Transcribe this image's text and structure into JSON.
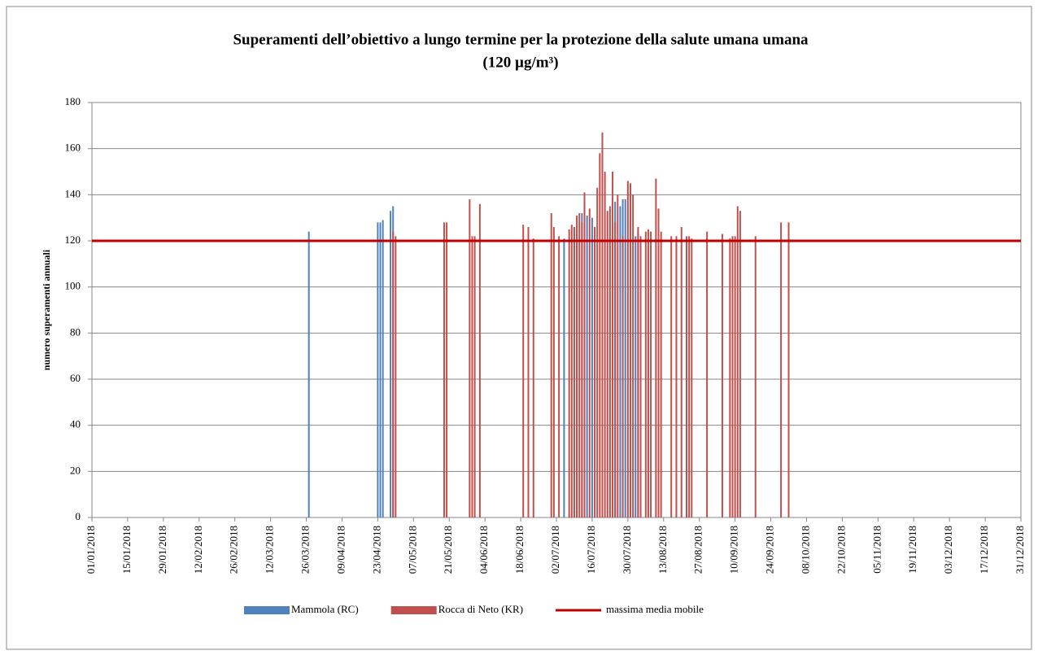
{
  "chart_data": {
    "type": "bar",
    "title": "Superamenti dell’obiettivo a lungo termine per la protezione della salute umana umana",
    "subtitle": "(120 µg/m³)",
    "y_label": "numero superamenti annuali",
    "xlim": [
      "01/01/2018",
      "31/12/2018"
    ],
    "xticks": [
      "01/01/2018",
      "15/01/2018",
      "29/01/2018",
      "12/02/2018",
      "26/02/2018",
      "12/03/2018",
      "26/03/2018",
      "09/04/2018",
      "23/04/2018",
      "07/05/2018",
      "21/05/2018",
      "04/06/2018",
      "18/06/2018",
      "02/07/2018",
      "16/07/2018",
      "30/07/2018",
      "13/08/2018",
      "27/08/2018",
      "10/09/2018",
      "24/09/2018",
      "08/10/2018",
      "22/10/2018",
      "05/11/2018",
      "19/11/2018",
      "03/12/2018",
      "17/12/2018",
      "31/12/2018"
    ],
    "ylim": [
      0,
      180
    ],
    "yticks": [
      0,
      20,
      40,
      60,
      80,
      100,
      120,
      140,
      160,
      180
    ],
    "grid": true,
    "legend": "bottom",
    "series": [
      {
        "name": "Mammola (RC)",
        "color": "#4f81bd",
        "x": [
          "27/03/2018",
          "23/04/2018",
          "24/04/2018",
          "25/04/2018",
          "28/04/2018",
          "29/04/2018",
          "05/07/2018",
          "10/07/2018",
          "12/07/2018",
          "13/07/2018",
          "14/07/2018",
          "16/07/2018",
          "25/07/2018",
          "27/07/2018",
          "28/07/2018",
          "29/07/2018",
          "02/08/2018",
          "03/08/2018"
        ],
        "values": [
          124,
          128,
          128,
          129,
          133,
          135,
          121,
          125,
          132,
          136,
          131,
          130,
          137,
          135,
          138,
          138,
          122,
          124
        ]
      },
      {
        "name": "Rocca di Neto (KR)",
        "color": "#c0504d",
        "x": [
          "29/04/2018",
          "30/04/2018",
          "19/05/2018",
          "20/05/2018",
          "29/05/2018",
          "30/05/2018",
          "31/05/2018",
          "02/06/2018",
          "19/06/2018",
          "21/06/2018",
          "23/06/2018",
          "30/06/2018",
          "01/07/2018",
          "03/07/2018",
          "07/07/2018",
          "08/07/2018",
          "09/07/2018",
          "10/07/2018",
          "11/07/2018",
          "12/07/2018",
          "13/07/2018",
          "15/07/2018",
          "17/07/2018",
          "18/07/2018",
          "19/07/2018",
          "20/07/2018",
          "21/07/2018",
          "22/07/2018",
          "23/07/2018",
          "24/07/2018",
          "25/07/2018",
          "26/07/2018",
          "28/07/2018",
          "30/07/2018",
          "31/07/2018",
          "01/08/2018",
          "03/08/2018",
          "04/08/2018",
          "06/08/2018",
          "07/08/2018",
          "08/08/2018",
          "10/08/2018",
          "11/08/2018",
          "12/08/2018",
          "16/08/2018",
          "18/08/2018",
          "20/08/2018",
          "22/08/2018",
          "23/08/2018",
          "24/08/2018",
          "30/08/2018",
          "05/09/2018",
          "08/09/2018",
          "09/09/2018",
          "10/09/2018",
          "11/09/2018",
          "12/09/2018",
          "18/09/2018",
          "28/09/2018",
          "01/10/2018"
        ],
        "values": [
          124,
          122,
          128,
          128,
          138,
          122,
          122,
          136,
          127,
          126,
          121,
          132,
          126,
          122,
          125,
          127,
          126,
          131,
          132,
          128,
          141,
          134,
          126,
          143,
          158,
          167,
          150,
          133,
          135,
          150,
          128,
          140,
          122,
          146,
          145,
          140,
          126,
          122,
          124,
          125,
          124,
          147,
          134,
          124,
          122,
          122,
          126,
          122,
          122,
          121,
          124,
          123,
          121,
          122,
          122,
          135,
          133,
          122,
          128,
          128
        ]
      }
    ],
    "threshold": {
      "name": "massima media mobile",
      "color": "#c00000",
      "value": 120
    }
  }
}
